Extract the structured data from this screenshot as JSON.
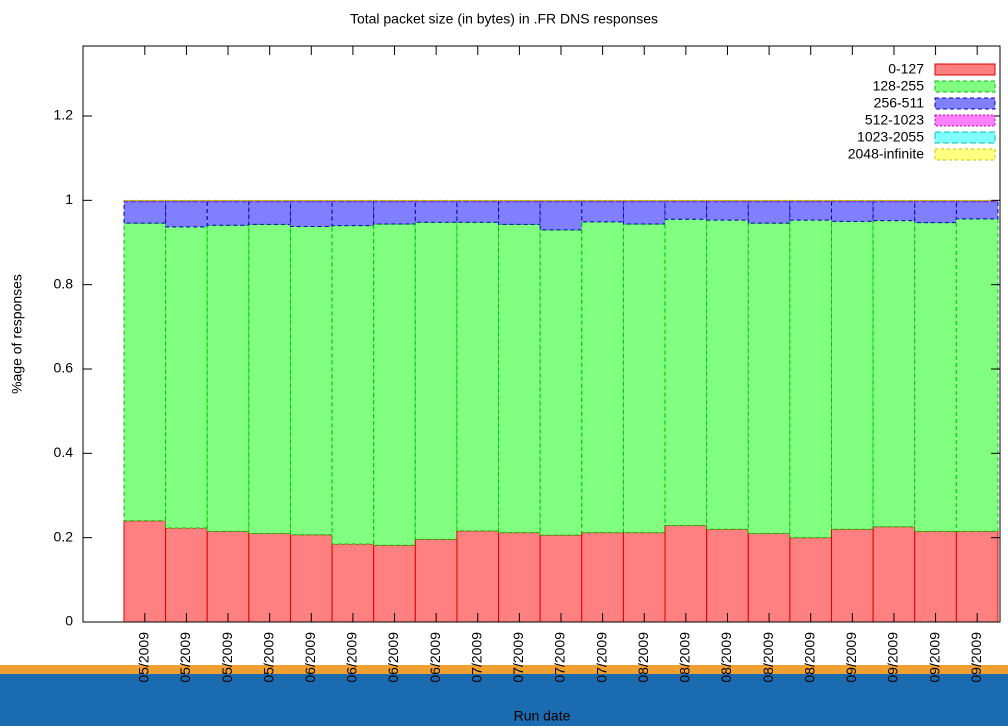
{
  "chart_data": {
    "type": "stacked-bar",
    "title": "Total packet size (in bytes) in .FR DNS responses",
    "x_label": "Run date",
    "y_label": "%age of responses",
    "categories": [
      "05/2009",
      "05/2009",
      "05/2009",
      "05/2009",
      "06/2009",
      "06/2009",
      "06/2009",
      "06/2009",
      "07/2009",
      "07/2009",
      "07/2009",
      "07/2009",
      "08/2009",
      "08/2009",
      "08/2009",
      "08/2009",
      "08/2009",
      "09/2009",
      "09/2009",
      "09/2009",
      "09/2009"
    ],
    "series": [
      {
        "name": "0-127",
        "color": "#ff8080",
        "border": "#e00000",
        "values": [
          0.24,
          0.223,
          0.215,
          0.21,
          0.207,
          0.185,
          0.182,
          0.196,
          0.216,
          0.212,
          0.206,
          0.212,
          0.212,
          0.229,
          0.22,
          0.21,
          0.2,
          0.22,
          0.226,
          0.215,
          0.215
        ]
      },
      {
        "name": "128-255",
        "color": "#80ff80",
        "border": "#00c000",
        "values": [
          0.706,
          0.714,
          0.726,
          0.733,
          0.731,
          0.755,
          0.762,
          0.752,
          0.732,
          0.731,
          0.724,
          0.737,
          0.732,
          0.726,
          0.733,
          0.736,
          0.753,
          0.73,
          0.726,
          0.732,
          0.741
        ]
      },
      {
        "name": "256-511",
        "color": "#8080ff",
        "border": "#0000c0",
        "values": [
          0.051,
          0.06,
          0.056,
          0.054,
          0.059,
          0.057,
          0.053,
          0.049,
          0.049,
          0.054,
          0.067,
          0.048,
          0.053,
          0.042,
          0.044,
          0.051,
          0.044,
          0.047,
          0.045,
          0.05,
          0.041
        ]
      },
      {
        "name": "512-1023",
        "color": "#ff80ff",
        "border": "#c000c0",
        "values": [
          0.002,
          0.002,
          0.002,
          0.002,
          0.002,
          0.002,
          0.002,
          0.002,
          0.002,
          0.002,
          0.002,
          0.002,
          0.002,
          0.002,
          0.002,
          0.002,
          0.002,
          0.002,
          0.002,
          0.002,
          0.002
        ]
      },
      {
        "name": "1023-2055",
        "color": "#80ffff",
        "border": "#00c0c0",
        "values": [
          0.0005,
          0.0005,
          0.0005,
          0.0005,
          0.0005,
          0.0005,
          0.0005,
          0.0005,
          0.0005,
          0.0005,
          0.0005,
          0.0005,
          0.0005,
          0.0005,
          0.0005,
          0.0005,
          0.0005,
          0.0005,
          0.0005,
          0.0005,
          0.0005
        ]
      },
      {
        "name": "2048-infinite",
        "color": "#ffff80",
        "border": "#c0c000",
        "values": [
          0.0005,
          0.0005,
          0.0005,
          0.0005,
          0.0005,
          0.0005,
          0.0005,
          0.0005,
          0.0005,
          0.0005,
          0.0005,
          0.0005,
          0.0005,
          0.0005,
          0.0005,
          0.0005,
          0.0005,
          0.0005,
          0.0005,
          0.0005,
          0.0005
        ]
      }
    ],
    "ylim": [
      0,
      1.366
    ],
    "yticks": [
      0,
      0.2,
      0.4,
      0.6,
      0.8,
      1,
      1.2
    ],
    "legend": "top-right"
  }
}
